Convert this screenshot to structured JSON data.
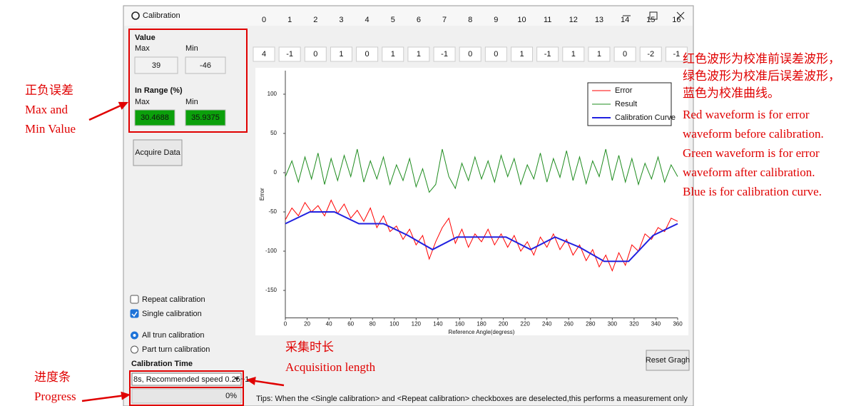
{
  "window": {
    "title": "Calibration"
  },
  "left_panel": {
    "value_heading": "Value",
    "max_label": "Max",
    "min_label": "Min",
    "max_value": "39",
    "min_value": "-46",
    "in_range_heading": "In Range  (%)",
    "in_range_max_label": "Max",
    "in_range_min_label": "Min",
    "in_range_max": "30.4688",
    "in_range_min": "35.9375",
    "acquire_button": "Acquire Data",
    "checkboxes": [
      {
        "label": "Repeat calibration",
        "checked": false
      },
      {
        "label": "Single calibration",
        "checked": true
      }
    ],
    "radios": [
      {
        "label": "All trun calibration",
        "selected": true
      },
      {
        "label": "Part turn calibration",
        "selected": false
      }
    ],
    "calibration_time_label": "Calibration Time",
    "calibration_time_select": "8s, Recommended speed 0.25~1",
    "progress": "0%"
  },
  "table": {
    "indices": [
      0,
      1,
      2,
      3,
      4,
      5,
      6,
      7,
      8,
      9,
      10,
      11,
      12,
      13,
      14,
      15,
      16
    ],
    "values": [
      4,
      -1,
      0,
      1,
      0,
      1,
      1,
      -1,
      0,
      0,
      1,
      -1,
      1,
      1,
      0,
      -2,
      -1
    ]
  },
  "reset_button": "Reset Gragh",
  "tips": "Tips: When the <Single calibration> and <Repeat calibration> checkboxes are deselected,this performs a measurement only",
  "annotations": {
    "max_min": [
      "正负误差",
      "Max and",
      "Min Value"
    ],
    "progress": [
      "进度条",
      "Progress"
    ],
    "acquisition": [
      "采集时长",
      "Acquisition length"
    ],
    "legend_note": [
      "红色波形为校准前误差波形，",
      "绿色波形为校准后误差波形，",
      "蓝色为校准曲线。",
      "Red waveform is for error",
      "waveform before calibration.",
      "Green waveform is for error",
      "waveform after calibration.",
      "Blue is for calibration curve."
    ]
  },
  "chart_data": {
    "type": "line",
    "xlabel": "Reference Angle(degress)",
    "ylabel": "Error",
    "xlim": [
      0,
      360
    ],
    "ylim": [
      -185,
      130
    ],
    "xticks": [
      0,
      20,
      40,
      60,
      80,
      100,
      120,
      140,
      160,
      180,
      200,
      220,
      240,
      260,
      280,
      300,
      320,
      340,
      360
    ],
    "yticks": [
      -150,
      -100,
      -50,
      0,
      50,
      100
    ],
    "grid": false,
    "legend": "upper right",
    "x": [
      0,
      6,
      12,
      18,
      24,
      30,
      36,
      42,
      48,
      54,
      60,
      66,
      72,
      78,
      84,
      90,
      96,
      102,
      108,
      114,
      120,
      126,
      132,
      138,
      144,
      150,
      156,
      162,
      168,
      174,
      180,
      186,
      192,
      198,
      204,
      210,
      216,
      222,
      228,
      234,
      240,
      246,
      252,
      258,
      264,
      270,
      276,
      282,
      288,
      294,
      300,
      306,
      312,
      318,
      324,
      330,
      336,
      342,
      348,
      354,
      360
    ],
    "series": [
      {
        "name": "Error",
        "color": "#ff0000",
        "values": [
          -60,
          -45,
          -55,
          -38,
          -50,
          -42,
          -55,
          -35,
          -52,
          -40,
          -58,
          -48,
          -62,
          -45,
          -70,
          -55,
          -75,
          -68,
          -85,
          -72,
          -92,
          -80,
          -110,
          -88,
          -70,
          -58,
          -90,
          -72,
          -95,
          -78,
          -88,
          -72,
          -92,
          -78,
          -95,
          -80,
          -100,
          -88,
          -105,
          -82,
          -95,
          -78,
          -98,
          -85,
          -105,
          -92,
          -112,
          -98,
          -120,
          -105,
          -125,
          -102,
          -118,
          -92,
          -100,
          -78,
          -85,
          -70,
          -75,
          -58,
          -62
        ]
      },
      {
        "name": "Result",
        "color": "#1f8c1f",
        "values": [
          -5,
          15,
          -12,
          20,
          -8,
          25,
          -15,
          18,
          -10,
          22,
          -5,
          30,
          -12,
          15,
          -8,
          20,
          -15,
          10,
          -10,
          18,
          -18,
          5,
          -25,
          -15,
          30,
          -5,
          -20,
          12,
          -10,
          20,
          -8,
          15,
          -12,
          22,
          -5,
          18,
          -15,
          10,
          -8,
          25,
          -12,
          18,
          -6,
          28,
          -10,
          20,
          -14,
          15,
          -5,
          30,
          -10,
          22,
          -12,
          18,
          -15,
          12,
          -8,
          20,
          -12,
          10,
          -5
        ]
      },
      {
        "name": "Calibration Curve",
        "color": "#2020e0",
        "x": [
          0,
          15,
          22.5,
          45,
          67.5,
          90,
          112.5,
          135,
          157.5,
          180,
          202.5,
          225,
          247.5,
          270,
          292.5,
          315,
          337.5,
          360
        ],
        "values": [
          -65,
          -55,
          -50,
          -50,
          -65,
          -65,
          -80,
          -98,
          -82,
          -82,
          -82,
          -98,
          -82,
          -95,
          -113,
          -113,
          -80,
          -65
        ]
      }
    ]
  }
}
